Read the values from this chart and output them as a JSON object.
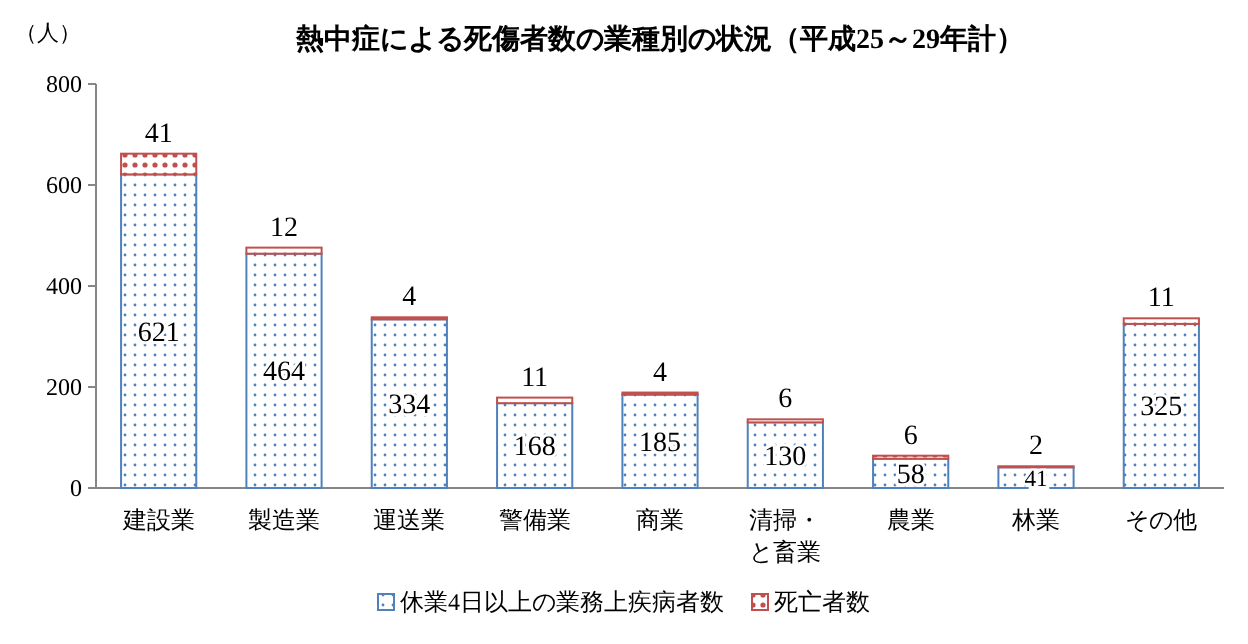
{
  "chart_data": {
    "type": "bar",
    "title": "熱中症による死傷者数の業種別の状況（平成25～29年計）",
    "ylabel": "（人）",
    "categories": [
      "建設業",
      "製造業",
      "運送業",
      "警備業",
      "商業",
      "清掃・と畜業",
      "農業",
      "林業",
      "その他"
    ],
    "stacked": true,
    "data_labels": true,
    "legend": "bottom",
    "grid": false,
    "ylim": [
      0,
      800
    ],
    "yticks": [
      0,
      200,
      400,
      600,
      800
    ],
    "series": [
      {
        "name": "休業4日以上の業務上疾病者数",
        "color": "#4f81bd",
        "values": [
          621,
          464,
          334,
          168,
          185,
          130,
          58,
          41,
          325
        ]
      },
      {
        "name": "死亡者数",
        "color": "#c0504d",
        "values": [
          41,
          12,
          4,
          11,
          4,
          6,
          6,
          2,
          11
        ]
      }
    ]
  }
}
